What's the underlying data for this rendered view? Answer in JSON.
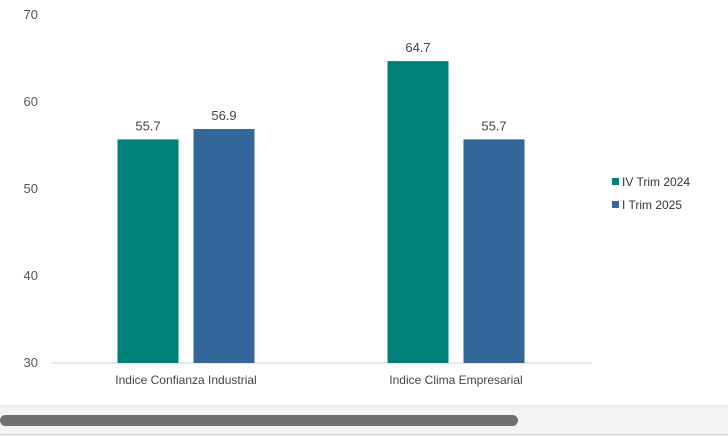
{
  "chart_data": {
    "type": "bar",
    "categories": [
      "Indice Confianza Industrial",
      "Indice Clima Empresarial"
    ],
    "series": [
      {
        "name": "IV Trim 2024",
        "values": [
          55.7,
          64.7
        ],
        "color": "#00827a"
      },
      {
        "name": "I Trim 2025",
        "values": [
          56.9,
          55.7
        ],
        "color": "#336699"
      }
    ],
    "yticks": [
      "30",
      "40",
      "50",
      "60",
      "70"
    ],
    "ylim": [
      30,
      70
    ],
    "grid": false,
    "legend": "right"
  }
}
